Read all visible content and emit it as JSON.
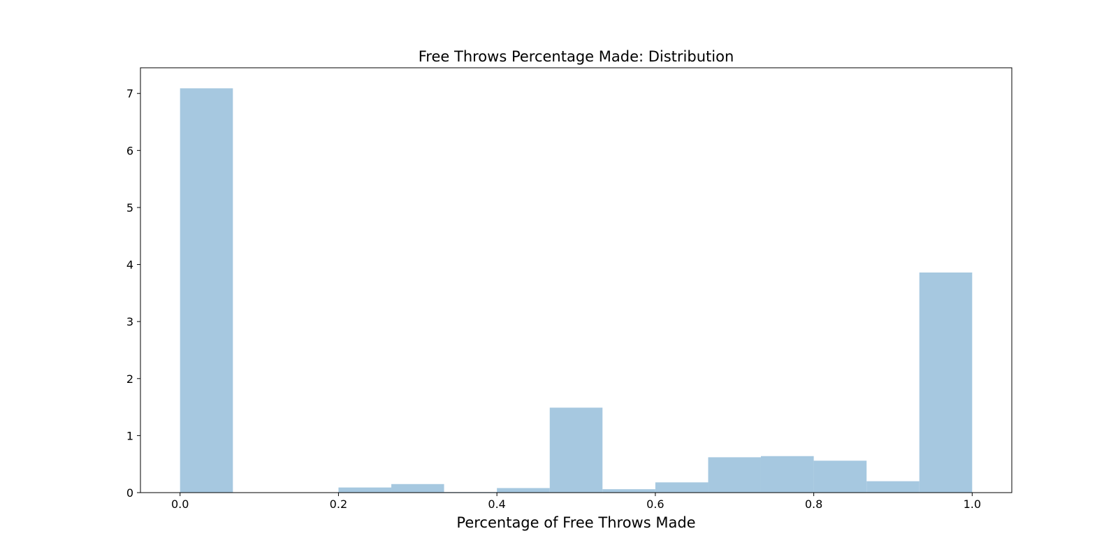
{
  "chart_data": {
    "type": "bar",
    "subtype": "histogram",
    "title": "Free Throws Percentage Made: Distribution",
    "xlabel": "Percentage of Free Throws Made",
    "ylabel": "",
    "xlim": [
      -0.05,
      1.05
    ],
    "ylim": [
      0,
      7.45
    ],
    "xticks": [
      0.0,
      0.2,
      0.4,
      0.6,
      0.8,
      1.0
    ],
    "xtick_labels": [
      "0.0",
      "0.2",
      "0.4",
      "0.6",
      "0.8",
      "1.0"
    ],
    "yticks": [
      0,
      1,
      2,
      3,
      4,
      5,
      6,
      7
    ],
    "ytick_labels": [
      "0",
      "1",
      "2",
      "3",
      "4",
      "5",
      "6",
      "7"
    ],
    "grid": false,
    "legend": "none",
    "bar_color": "#a6c8e0",
    "bins": [
      {
        "start": 0.0,
        "end": 0.0667,
        "value": 7.09
      },
      {
        "start": 0.0667,
        "end": 0.1333,
        "value": 0.0
      },
      {
        "start": 0.1333,
        "end": 0.2,
        "value": 0.0
      },
      {
        "start": 0.2,
        "end": 0.2667,
        "value": 0.09
      },
      {
        "start": 0.2667,
        "end": 0.3333,
        "value": 0.15
      },
      {
        "start": 0.3333,
        "end": 0.4,
        "value": 0.01
      },
      {
        "start": 0.4,
        "end": 0.4667,
        "value": 0.08
      },
      {
        "start": 0.4667,
        "end": 0.5333,
        "value": 1.49
      },
      {
        "start": 0.5333,
        "end": 0.6,
        "value": 0.06
      },
      {
        "start": 0.6,
        "end": 0.6667,
        "value": 0.18
      },
      {
        "start": 0.6667,
        "end": 0.7333,
        "value": 0.62
      },
      {
        "start": 0.7333,
        "end": 0.8,
        "value": 0.64
      },
      {
        "start": 0.8,
        "end": 0.8667,
        "value": 0.56
      },
      {
        "start": 0.8667,
        "end": 0.9333,
        "value": 0.2
      },
      {
        "start": 0.9333,
        "end": 1.0,
        "value": 3.86
      }
    ]
  }
}
